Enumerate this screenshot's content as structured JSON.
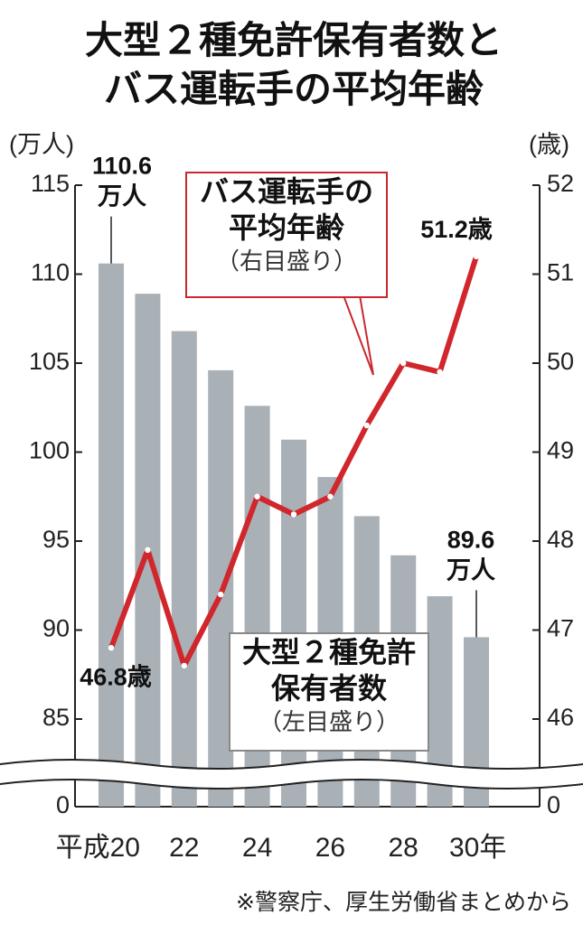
{
  "chart_data": {
    "type": "bar_line",
    "title": "大型２種免許保有者数とバス運転手の平均年齢",
    "y_unit": "(万人)",
    "y2_unit": "(歳)",
    "source": "※警察庁、厚生労働省まとめから",
    "categories": [
      "平成20",
      null,
      "22",
      null,
      "24",
      null,
      "26",
      null,
      "28",
      null,
      "30年"
    ],
    "series": [
      {
        "name": "大型２種免許保有者数",
        "scale_label": "（左目盛り）",
        "type": "bar",
        "color": "#a9b0b6",
        "values": [
          110.6,
          108.9,
          106.8,
          104.6,
          102.6,
          100.7,
          98.6,
          96.4,
          94.2,
          91.9,
          89.6
        ],
        "value_labels": [
          "110.6万人",
          null,
          null,
          null,
          null,
          null,
          null,
          null,
          null,
          null,
          "89.6万人"
        ]
      },
      {
        "name": "バス運転手の平均年齢",
        "scale_label": "（右目盛り）",
        "type": "line",
        "color": "#d0262c",
        "axis": "y2",
        "values": [
          46.8,
          47.9,
          46.6,
          47.4,
          48.5,
          48.3,
          48.5,
          49.3,
          50.0,
          49.9,
          51.2
        ],
        "value_labels": [
          "46.8歳",
          null,
          null,
          null,
          null,
          null,
          null,
          null,
          null,
          null,
          "51.2歳"
        ]
      }
    ],
    "ylim": [
      0,
      115
    ],
    "yticks": [
      0,
      85,
      90,
      95,
      100,
      105,
      110,
      115
    ],
    "y2lim": [
      0,
      52
    ],
    "y2ticks": [
      0,
      46,
      47,
      48,
      49,
      50,
      51,
      52
    ],
    "axis_break": true
  }
}
